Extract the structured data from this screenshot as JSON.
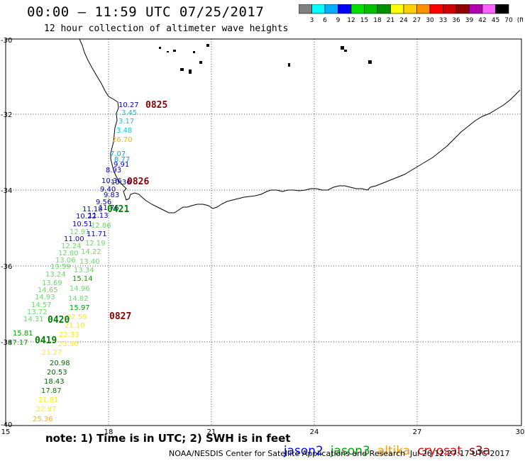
{
  "header": {
    "title": "00:00 – 11:59 UTC 07/25/2017",
    "subtitle": "12 hour collection of altimeter wave heights"
  },
  "colorbar": {
    "colors": [
      "#808080",
      "#00ffff",
      "#00b0ff",
      "#0000ff",
      "#00e000",
      "#00c000",
      "#009000",
      "#ffff00",
      "#ffd000",
      "#ff9000",
      "#ff0000",
      "#d00000",
      "#900000",
      "#b000b0",
      "#ff60ff",
      "#000000"
    ],
    "labels": [
      "3",
      "6",
      "9",
      "12",
      "15",
      "18",
      "21",
      "24",
      "27",
      "30",
      "33",
      "36",
      "39",
      "42",
      "45",
      "70",
      "(ft)"
    ]
  },
  "axes": {
    "y_ticks": [
      "-30",
      "-32",
      "-34",
      "-36",
      "-38",
      "-40"
    ],
    "x_ticks": [
      "15",
      "18",
      "21",
      "24",
      "27",
      "30"
    ]
  },
  "passes": [
    {
      "label": "0825",
      "color": "#8b0000"
    },
    {
      "label": "0826",
      "color": "#8b0000"
    },
    {
      "label": "0421",
      "color": "#008000"
    },
    {
      "label": "0827",
      "color": "#8b0000"
    },
    {
      "label": "0420",
      "color": "#008000"
    },
    {
      "label": "0419",
      "color": "#008000"
    }
  ],
  "values": [
    {
      "t": "10.27",
      "c": "#0000cc"
    },
    {
      "t": "3.45",
      "c": "#00d0e0"
    },
    {
      "t": "3.17",
      "c": "#00d0e0"
    },
    {
      "t": "3.48",
      "c": "#00d0e0"
    },
    {
      "t": "26.70",
      "c": "#ffb000"
    },
    {
      "t": "7.07",
      "c": "#00a0ff"
    },
    {
      "t": "8.77",
      "c": "#00a0ff"
    },
    {
      "t": "9.91",
      "c": "#0000cc"
    },
    {
      "t": "8.93",
      "c": "#0000cc"
    },
    {
      "t": "10.36",
      "c": "#0000cc"
    },
    {
      "t": "10.36",
      "c": "#0000cc"
    },
    {
      "t": "9.40",
      "c": "#0000cc"
    },
    {
      "t": "9.83",
      "c": "#0000cc"
    },
    {
      "t": "9.56",
      "c": "#0000cc"
    },
    {
      "t": "11.18",
      "c": "#0000cc"
    },
    {
      "t": "11.76",
      "c": "#0000cc"
    },
    {
      "t": "10.22",
      "c": "#0000cc"
    },
    {
      "t": "11.13",
      "c": "#0000cc"
    },
    {
      "t": "10.51",
      "c": "#0000cc"
    },
    {
      "t": "12.86",
      "c": "#66dd66"
    },
    {
      "t": "12.91",
      "c": "#66dd66"
    },
    {
      "t": "11.71",
      "c": "#0000cc"
    },
    {
      "t": "11.00",
      "c": "#0000cc"
    },
    {
      "t": "12.19",
      "c": "#66dd66"
    },
    {
      "t": "12.24",
      "c": "#66dd66"
    },
    {
      "t": "12.80",
      "c": "#66dd66"
    },
    {
      "t": "14.22",
      "c": "#66dd66"
    },
    {
      "t": "13.06",
      "c": "#66dd66"
    },
    {
      "t": "13.40",
      "c": "#66dd66"
    },
    {
      "t": "13.59",
      "c": "#66dd66"
    },
    {
      "t": "13.34",
      "c": "#66dd66"
    },
    {
      "t": "13.24",
      "c": "#66dd66"
    },
    {
      "t": "15.14",
      "c": "#00a000"
    },
    {
      "t": "13.69",
      "c": "#66dd66"
    },
    {
      "t": "14.65",
      "c": "#66dd66"
    },
    {
      "t": "14.96",
      "c": "#66dd66"
    },
    {
      "t": "14.93",
      "c": "#66dd66"
    },
    {
      "t": "14.82",
      "c": "#66dd66"
    },
    {
      "t": "14.57",
      "c": "#66dd66"
    },
    {
      "t": "15.97",
      "c": "#00a000"
    },
    {
      "t": "13.72",
      "c": "#66dd66"
    },
    {
      "t": "14.31",
      "c": "#66dd66"
    },
    {
      "t": "22.59",
      "c": "#ffee00"
    },
    {
      "t": "21.10",
      "c": "#ffee00"
    },
    {
      "t": "15.81",
      "c": "#00a000"
    },
    {
      "t": "22.33",
      "c": "#ffee00"
    },
    {
      "t": "17.17",
      "c": "#00a000"
    },
    {
      "t": "23.30",
      "c": "#ffee00"
    },
    {
      "t": "21.27",
      "c": "#ffee00"
    },
    {
      "t": "20.98",
      "c": "#006400"
    },
    {
      "t": "20.53",
      "c": "#006400"
    },
    {
      "t": "18.43",
      "c": "#006400"
    },
    {
      "t": "17.87",
      "c": "#008000"
    },
    {
      "t": "21.81",
      "c": "#ffee00"
    },
    {
      "t": "22.87",
      "c": "#ffee00"
    },
    {
      "t": "25.36",
      "c": "#ffb000"
    }
  ],
  "footer": {
    "note": "note: 1) Time is in UTC; 2) SWH is in feet",
    "legend": [
      {
        "label": "jason2",
        "color": "#0000ff"
      },
      {
        "label": "jason3",
        "color": "#00a000"
      },
      {
        "label": "altika",
        "color": "#ff9900"
      },
      {
        "label": "cryosat",
        "color": "#dd0000"
      },
      {
        "label": "s3a",
        "color": "#8b0000"
      }
    ],
    "credit": "NOAA/NESDIS Center for Satellite Applications and Research",
    "timestamp": "Jul 26 12:27:17 UTC 2017"
  }
}
